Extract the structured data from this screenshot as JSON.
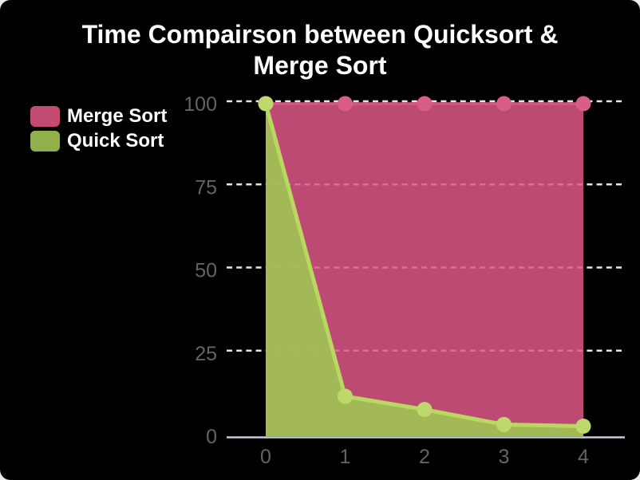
{
  "window": {
    "background_color": "#000000",
    "page_background_color": "#ebebeb"
  },
  "chart_data": {
    "type": "area",
    "title": "Time Compairson between Quicksort & Merge Sort",
    "title_lines": [
      "Time Compairson between Quicksort &",
      "Merge Sort"
    ],
    "x": [
      0,
      1,
      2,
      3,
      4
    ],
    "xticks": [
      "0",
      "1",
      "2",
      "3",
      "4"
    ],
    "yticks": [
      0,
      25,
      50,
      75,
      100
    ],
    "ytick_labels": [
      "0",
      "25",
      "50",
      "75",
      "100"
    ],
    "xlim": [
      0,
      4
    ],
    "ylim": [
      0,
      100
    ],
    "xlabel": "",
    "ylabel": "",
    "grid": "dashed-horizontal",
    "legend_position": "top-left",
    "series": [
      {
        "name": "Merge Sort",
        "values": [
          100,
          100,
          100,
          100,
          100
        ],
        "line_color": "#d95684",
        "fill_color": "rgba(222,87,135,0.85)",
        "dot_color": "#d95d89",
        "swatch_color": "#c34b71"
      },
      {
        "name": "Quick Sort",
        "values": [
          100,
          12,
          8,
          3.5,
          3
        ],
        "line_color": "#b9d85f",
        "fill_color": "rgba(160,197,85,0.9)",
        "dot_color": "#bed96b",
        "swatch_color": "#8fb04a"
      }
    ],
    "colors": {
      "gridline": "#e6e6e6",
      "axis_line": "#c5cdde",
      "tick_label": "#646464",
      "title_text": "#ffffff",
      "legend_text": "#ffffff"
    }
  }
}
